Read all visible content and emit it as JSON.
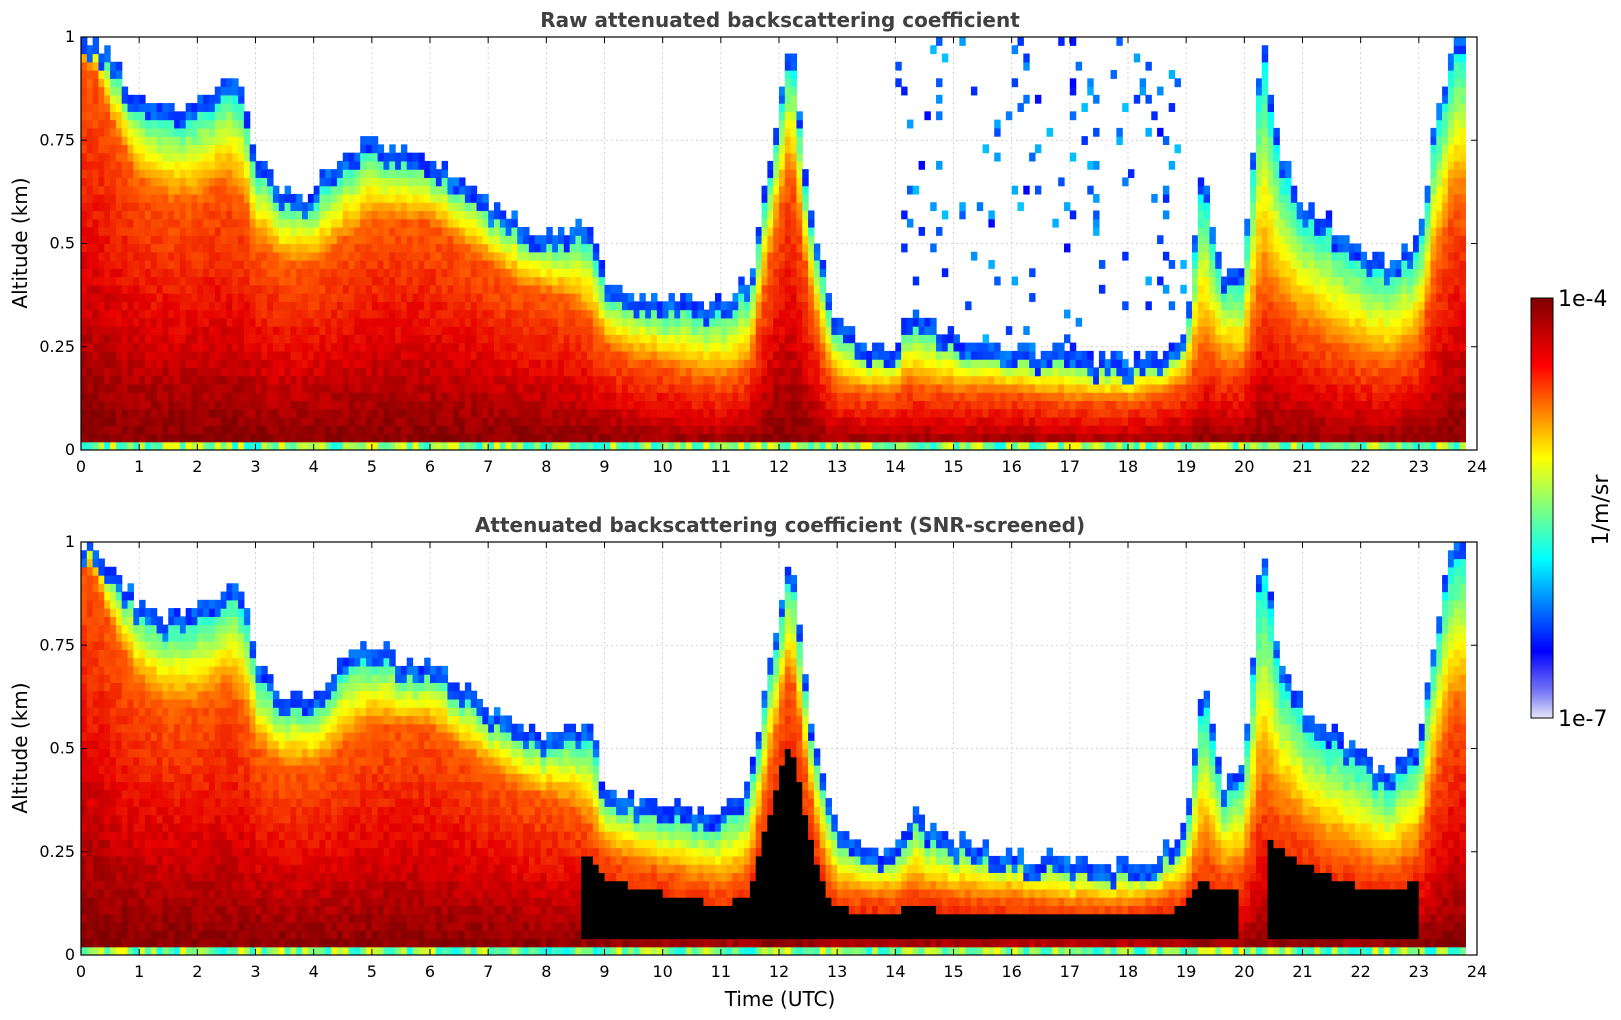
{
  "chart_data": [
    {
      "type": "heatmap",
      "title": "Raw attenuated backscattering coefficient",
      "xlabel": "",
      "ylabel": "Altitude (km)",
      "xlim": [
        0,
        24
      ],
      "ylim": [
        0,
        1
      ],
      "xticks": [
        "0",
        "1",
        "2",
        "3",
        "4",
        "5",
        "6",
        "7",
        "8",
        "9",
        "10",
        "11",
        "12",
        "13",
        "14",
        "15",
        "16",
        "17",
        "18",
        "19",
        "20",
        "21",
        "22",
        "23",
        "24"
      ],
      "yticks": [
        "0",
        "0.25",
        "0.5",
        "0.75",
        "1"
      ],
      "grid": true,
      "colormap": "jet",
      "color_scale": "log",
      "screened": false
    },
    {
      "type": "heatmap",
      "title": "Attenuated backscattering coefficient (SNR-screened)",
      "xlabel": "Time (UTC)",
      "ylabel": "Altitude (km)",
      "xlim": [
        0,
        24
      ],
      "ylim": [
        0,
        1
      ],
      "xticks": [
        "0",
        "1",
        "2",
        "3",
        "4",
        "5",
        "6",
        "7",
        "8",
        "9",
        "10",
        "11",
        "12",
        "13",
        "14",
        "15",
        "16",
        "17",
        "18",
        "19",
        "20",
        "21",
        "22",
        "23",
        "24"
      ],
      "yticks": [
        "0",
        "0.25",
        "0.5",
        "0.75",
        "1"
      ],
      "grid": true,
      "colormap": "jet",
      "color_scale": "log",
      "screened": true
    }
  ],
  "colorbar": {
    "label": "1/m/sr",
    "min_label": "1e-7",
    "max_label": "1e-4",
    "min": 1e-07,
    "max": 0.0001,
    "colors": [
      "#e6e6fa",
      "#0000ff",
      "#00ffff",
      "#ffff00",
      "#ff0000",
      "#800000"
    ]
  },
  "profile": {
    "times": [
      0,
      0.3,
      0.5,
      1,
      1.5,
      2,
      2.5,
      2.8,
      3,
      3.5,
      4,
      4.5,
      5,
      5.5,
      6,
      6.5,
      7,
      7.5,
      8,
      8.5,
      8.8,
      9,
      9.5,
      10,
      10.5,
      11,
      11.5,
      11.9,
      12.2,
      12.5,
      12.8,
      13,
      13.5,
      14,
      14.3,
      14.6,
      15,
      15.5,
      16,
      16.5,
      17,
      17.5,
      18,
      18.5,
      19,
      19.3,
      19.6,
      20,
      20.3,
      20.6,
      21,
      21.5,
      22,
      22.5,
      23,
      23.3,
      23.6,
      23.8
    ],
    "tops": [
      1.0,
      1.0,
      0.95,
      0.85,
      0.82,
      0.84,
      0.9,
      0.88,
      0.72,
      0.62,
      0.63,
      0.72,
      0.76,
      0.72,
      0.7,
      0.66,
      0.6,
      0.56,
      0.52,
      0.55,
      0.55,
      0.4,
      0.38,
      0.37,
      0.36,
      0.35,
      0.42,
      0.75,
      1.0,
      0.62,
      0.4,
      0.3,
      0.26,
      0.25,
      0.36,
      0.3,
      0.28,
      0.26,
      0.25,
      0.24,
      0.23,
      0.22,
      0.22,
      0.23,
      0.3,
      0.7,
      0.42,
      0.45,
      1.0,
      0.72,
      0.6,
      0.55,
      0.48,
      0.45,
      0.52,
      0.8,
      1.0,
      1.0
    ],
    "core": [
      0.95,
      0.9,
      0.8,
      0.65,
      0.6,
      0.6,
      0.65,
      0.6,
      0.5,
      0.45,
      0.45,
      0.5,
      0.55,
      0.55,
      0.55,
      0.5,
      0.45,
      0.4,
      0.38,
      0.35,
      0.3,
      0.25,
      0.22,
      0.2,
      0.18,
      0.16,
      0.2,
      0.5,
      0.7,
      0.4,
      0.2,
      0.15,
      0.14,
      0.14,
      0.16,
      0.15,
      0.14,
      0.14,
      0.14,
      0.13,
      0.12,
      0.12,
      0.12,
      0.13,
      0.16,
      0.25,
      0.2,
      0.2,
      0.4,
      0.35,
      0.3,
      0.25,
      0.22,
      0.2,
      0.25,
      0.45,
      0.6,
      0.6
    ]
  }
}
